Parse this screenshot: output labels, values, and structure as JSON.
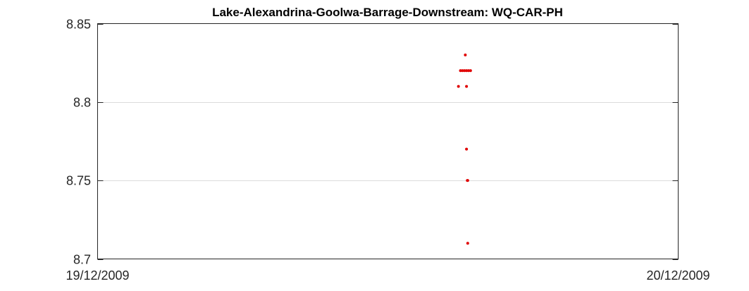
{
  "chart_data": {
    "type": "scatter",
    "title": "Lake-Alexandrina-Goolwa-Barrage-Downstream: WQ-CAR-PH",
    "xlabel": "",
    "ylabel": "",
    "xlim": [
      "19/12/2009 00:00",
      "20/12/2009 00:00"
    ],
    "ylim": [
      8.7,
      8.85
    ],
    "x_tick_labels": [
      "19/12/2009",
      "20/12/2009"
    ],
    "y_ticks": [
      8.7,
      8.75,
      8.8,
      8.85
    ],
    "y_tick_labels": [
      "8.7",
      "8.75",
      "8.8",
      "8.85"
    ],
    "grid": "y",
    "marker_color": "#e00000",
    "series": [
      {
        "points": [
          {
            "x": "19/12/2009 15:00",
            "y": 8.82
          },
          {
            "x": "19/12/2009 15:05",
            "y": 8.82
          },
          {
            "x": "19/12/2009 15:10",
            "y": 8.82
          },
          {
            "x": "19/12/2009 15:15",
            "y": 8.82
          },
          {
            "x": "19/12/2009 15:20",
            "y": 8.82
          },
          {
            "x": "19/12/2009 15:25",
            "y": 8.82
          },
          {
            "x": "19/12/2009 14:55",
            "y": 8.81
          },
          {
            "x": "19/12/2009 15:15",
            "y": 8.81
          },
          {
            "x": "19/12/2009 15:12",
            "y": 8.83
          },
          {
            "x": "19/12/2009 15:15",
            "y": 8.77
          },
          {
            "x": "19/12/2009 15:17",
            "y": 8.75
          },
          {
            "x": "19/12/2009 15:18",
            "y": 8.75
          },
          {
            "x": "19/12/2009 15:18",
            "y": 8.71
          }
        ]
      }
    ]
  }
}
